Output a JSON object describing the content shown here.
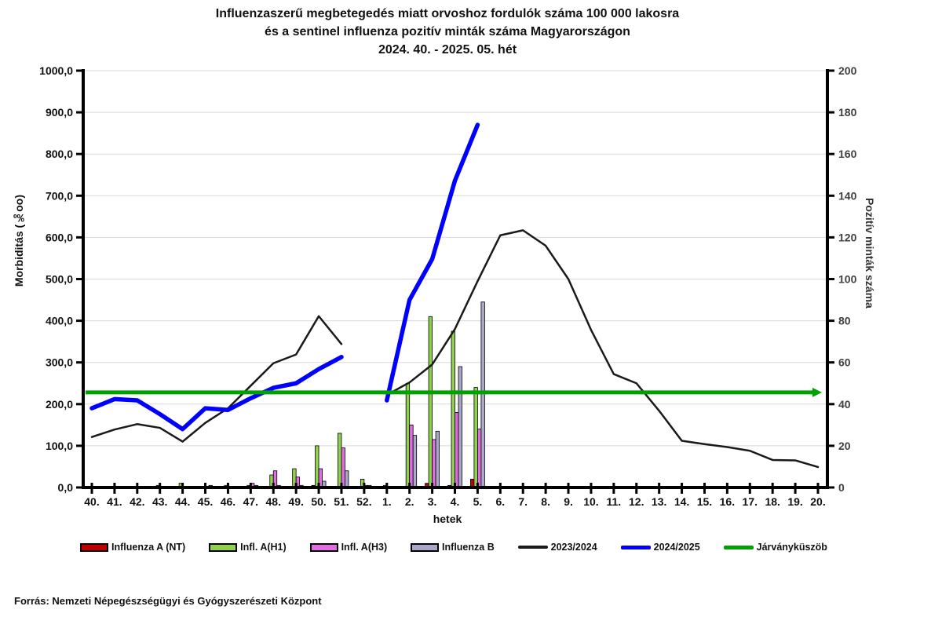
{
  "title": {
    "line1": "Influenzaszerű megbetegedés miatt orvoshoz fordulók száma 100 000 lakosra",
    "line2": "és a sentinel influenza pozitív minták száma Magyarországon",
    "line3": "2024. 40. - 2025. 05. hét"
  },
  "source": "Forrás: Nemzeti Népegészségügyi és Gyógyszerészeti Központ",
  "chart_data": {
    "type": "bar",
    "subtype": "grouped-bar-with-lines-dual-axis",
    "categories": [
      "40.",
      "41.",
      "42.",
      "43.",
      "44.",
      "45.",
      "46.",
      "47.",
      "48.",
      "49.",
      "50.",
      "51.",
      "52.",
      "1.",
      "2.",
      "3.",
      "4.",
      "5.",
      "6.",
      "7.",
      "8.",
      "9.",
      "10.",
      "11.",
      "12.",
      "13.",
      "14.",
      "15.",
      "16.",
      "17.",
      "18.",
      "19.",
      "20."
    ],
    "xlabel": "hetek",
    "left_axis": {
      "label": "Morbiditás (‰oo)",
      "min": 0,
      "max": 1000,
      "step": 100,
      "ticks": [
        "0,0",
        "100,0",
        "200,0",
        "300,0",
        "400,0",
        "500,0",
        "600,0",
        "700,0",
        "800,0",
        "900,0",
        "1000,0"
      ]
    },
    "right_axis": {
      "label": "Pozitív minták száma",
      "min": 0,
      "max": 200,
      "step": 20,
      "ticks": [
        "0",
        "20",
        "40",
        "60",
        "80",
        "100",
        "120",
        "140",
        "160",
        "180",
        "200"
      ]
    },
    "grid": "horizontal-only",
    "legend_position": "bottom",
    "bar_series": [
      {
        "name": "Influenza A (NT)",
        "color": "#c00000",
        "axis": "right",
        "values": [
          0,
          0,
          0,
          0,
          0,
          0,
          0,
          0,
          0,
          0,
          1,
          0,
          0,
          0,
          0,
          2,
          1,
          4,
          0,
          0,
          0,
          0,
          0,
          0,
          0,
          0,
          0,
          0,
          0,
          0,
          0,
          0,
          0
        ]
      },
      {
        "name": "Infl. A(H1)",
        "color": "#92d050",
        "axis": "right",
        "values": [
          0,
          0,
          0,
          1,
          2,
          0,
          1,
          1,
          6,
          9,
          20,
          26,
          4,
          1,
          50,
          82,
          75,
          48,
          0,
          0,
          0,
          0,
          0,
          0,
          0,
          0,
          0,
          0,
          0,
          0,
          0,
          0,
          0
        ]
      },
      {
        "name": "Infl. A(H3)",
        "color": "#e06ee0",
        "axis": "right",
        "values": [
          0,
          0,
          0,
          0,
          0,
          0,
          0,
          2,
          8,
          5,
          9,
          19,
          1,
          0,
          30,
          23,
          36,
          28,
          0,
          0,
          0,
          0,
          0,
          0,
          0,
          0,
          0,
          0,
          0,
          0,
          0,
          0,
          0
        ]
      },
      {
        "name": "Influenza B",
        "color": "#aaa8c8",
        "axis": "right",
        "values": [
          0,
          0,
          0,
          0,
          0,
          1,
          0,
          1,
          1,
          1,
          3,
          8,
          1,
          0,
          25,
          27,
          58,
          89,
          0,
          0,
          0,
          0,
          0,
          0,
          0,
          0,
          0,
          0,
          0,
          0,
          0,
          0,
          0
        ]
      }
    ],
    "line_series": [
      {
        "name": "2023/2024",
        "color": "#1a1a1a",
        "axis": "left",
        "width": 2.5,
        "values": [
          121,
          139,
          152,
          143,
          110,
          155,
          190,
          244,
          298,
          319,
          411,
          344,
          null,
          222,
          252,
          295,
          380,
          495,
          605,
          617,
          580,
          500,
          378,
          272,
          250,
          184,
          112,
          104,
          97,
          88,
          66,
          65,
          49
        ]
      },
      {
        "name": "2024/2025",
        "color": "#0000ff",
        "axis": "left",
        "width": 5.5,
        "values": [
          190,
          212,
          209,
          176,
          140,
          190,
          186,
          214,
          239,
          250,
          284,
          313,
          null,
          209,
          450,
          548,
          736,
          870,
          null,
          null,
          null,
          null,
          null,
          null,
          null,
          null,
          null,
          null,
          null,
          null,
          null,
          null,
          null
        ]
      },
      {
        "name": "Járványküszöb",
        "color": "#00a000",
        "axis": "left",
        "width": 5,
        "threshold_value": 228
      }
    ]
  }
}
